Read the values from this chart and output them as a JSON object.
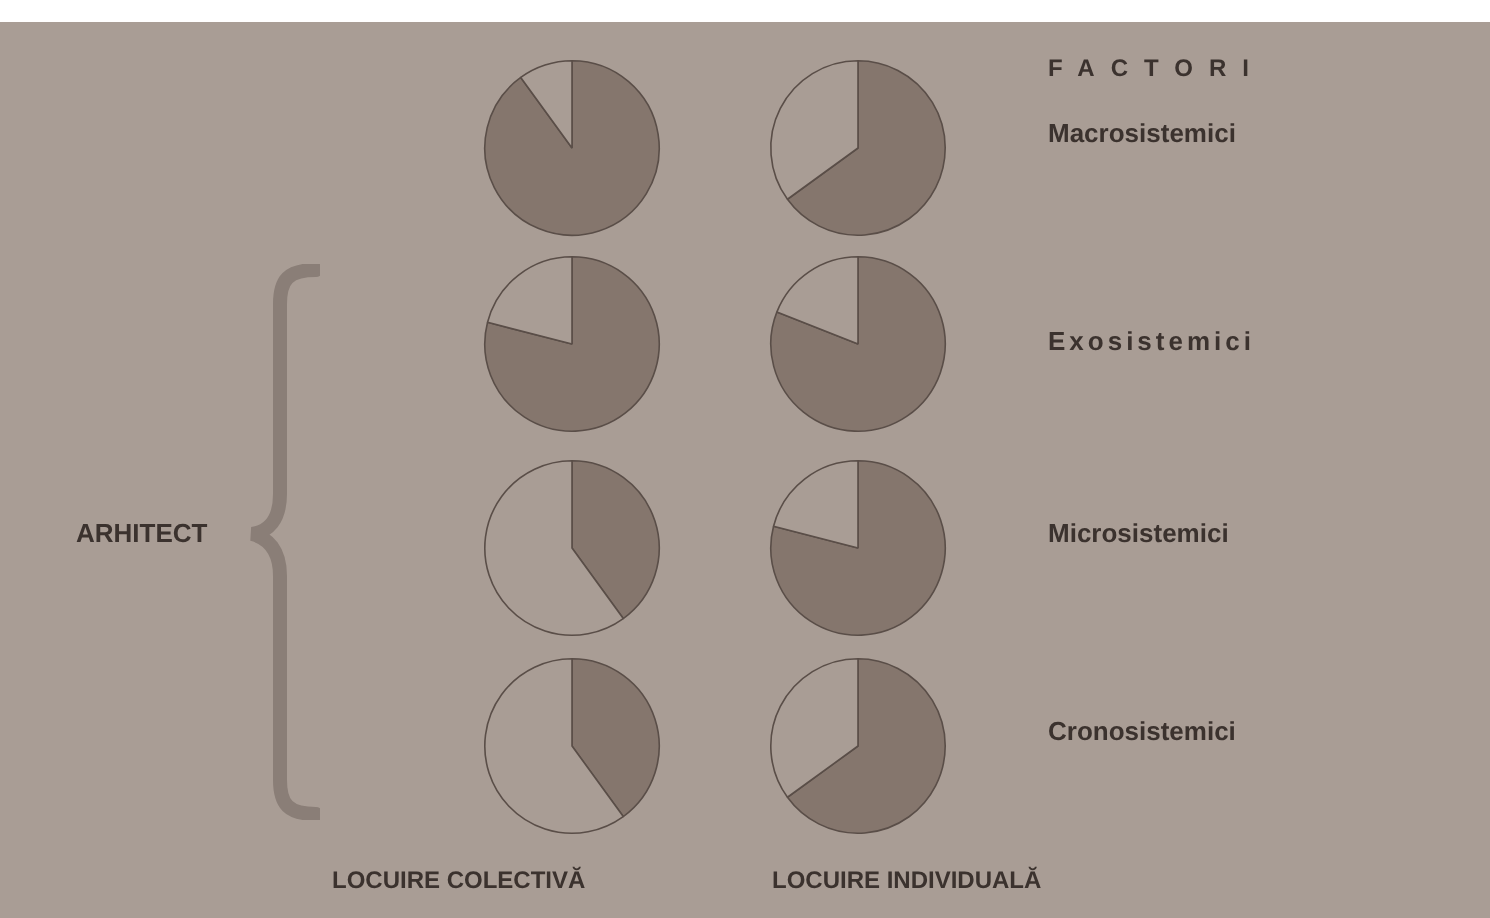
{
  "chart_data": [
    {
      "type": "pie",
      "categories": [
        null,
        null
      ],
      "values": [
        90,
        10
      ],
      "colors": [
        "#85766d",
        "#a99d95"
      ]
    },
    {
      "type": "pie",
      "categories": [
        null,
        null
      ],
      "values": [
        65,
        35
      ],
      "colors": [
        "#85766d",
        "#a99d95"
      ],
      "annotations": [
        "Macrosistemici"
      ]
    },
    {
      "type": "pie",
      "categories": [
        null,
        null
      ],
      "values": [
        79,
        21
      ],
      "colors": [
        "#85766d",
        "#a99d95"
      ]
    },
    {
      "type": "pie",
      "categories": [
        null,
        null
      ],
      "values": [
        81,
        19
      ],
      "colors": [
        "#85766d",
        "#a99d95"
      ],
      "annotations": [
        "Exosistemici"
      ]
    },
    {
      "type": "pie",
      "categories": [
        null,
        null
      ],
      "values": [
        40,
        60
      ],
      "colors": [
        "#85766d",
        "#a99d95"
      ]
    },
    {
      "type": "pie",
      "categories": [
        null,
        null
      ],
      "values": [
        79,
        21
      ],
      "colors": [
        "#85766d",
        "#a99d95"
      ],
      "annotations": [
        "Microsistemici"
      ]
    },
    {
      "type": "pie",
      "categories": [
        null,
        null
      ],
      "values": [
        40,
        60
      ],
      "colors": [
        "#85766d",
        "#a99d95"
      ],
      "xlabel": "LOCUIRE COLECTIVĂ"
    },
    {
      "type": "pie",
      "categories": [
        null,
        null
      ],
      "values": [
        65,
        35
      ],
      "colors": [
        "#85766d",
        "#a99d95"
      ],
      "xlabel": "LOCUIRE INDIVIDUALĂ",
      "annotations": [
        "Cronosistemici"
      ]
    },
    {
      "type": "other",
      "title": "FACTORI",
      "annotations": [
        "ARHITECT"
      ]
    }
  ]
}
